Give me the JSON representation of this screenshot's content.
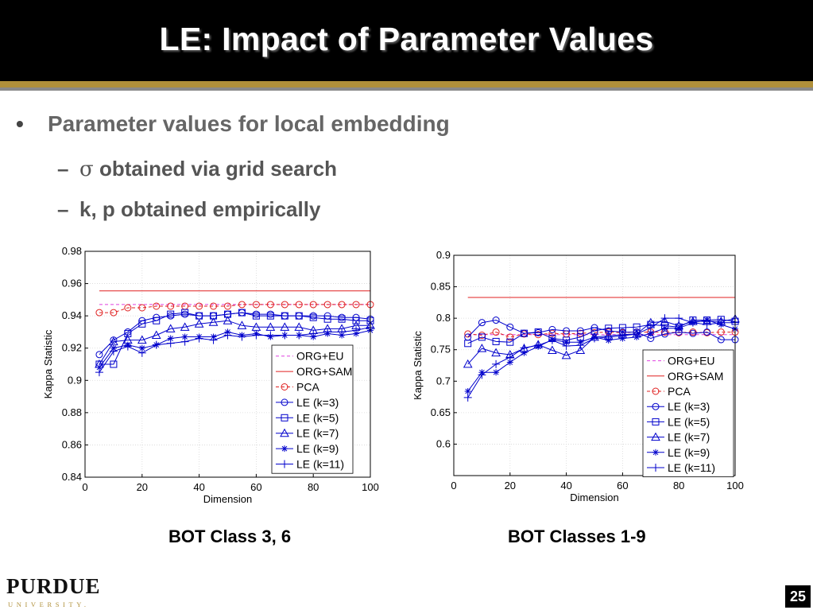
{
  "slide": {
    "title": "LE: Impact of Parameter Values",
    "bullet": "Parameter values for local embedding",
    "sub1_symbol": "σ",
    "sub1_text": " obtained via grid search",
    "sub2_text": "k, p obtained empirically",
    "dash": "–",
    "dot": "•",
    "caption_left": "BOT Class 3, 6",
    "caption_right": "BOT Classes 1-9",
    "logo_word": "PURDUE",
    "logo_sub": "UNIVERSITY.",
    "page_number": "25"
  },
  "colors": {
    "title_bg": "#000000",
    "gold": "#b0903a",
    "org_eu": "#e040e0",
    "org_sam": "#e02020",
    "pca": "#e02020",
    "le": "#0000cc"
  },
  "chart_data": [
    {
      "type": "line",
      "xlabel": "Dimension",
      "ylabel": "Kappa Statistic",
      "xlim": [
        0,
        100
      ],
      "ylim": [
        0.84,
        0.98
      ],
      "xticks": [
        0,
        20,
        40,
        60,
        80,
        100
      ],
      "yticks": [
        0.84,
        0.86,
        0.88,
        0.9,
        0.92,
        0.94,
        0.96,
        0.98
      ],
      "grid": true,
      "legend_position": "lower-right",
      "x": [
        5,
        10,
        15,
        20,
        25,
        30,
        35,
        40,
        45,
        50,
        55,
        60,
        65,
        70,
        75,
        80,
        85,
        90,
        95,
        100
      ],
      "series": [
        {
          "name": "ORG+EU",
          "style": "dashed",
          "marker": "none",
          "color": "#e040e0",
          "x": [
            5,
            100
          ],
          "values": [
            0.947,
            0.947
          ]
        },
        {
          "name": "ORG+SAM",
          "style": "solid",
          "marker": "none",
          "color": "#e02020",
          "x": [
            5,
            100
          ],
          "values": [
            0.9555,
            0.9555
          ]
        },
        {
          "name": "PCA",
          "style": "dashed",
          "marker": "circle",
          "color": "#e02020",
          "values": [
            0.942,
            0.942,
            0.945,
            0.945,
            0.946,
            0.946,
            0.946,
            0.946,
            0.946,
            0.946,
            0.947,
            0.947,
            0.947,
            0.947,
            0.947,
            0.947,
            0.947,
            0.947,
            0.947,
            0.947
          ]
        },
        {
          "name": "LE (k=3)",
          "style": "solid",
          "marker": "circle",
          "color": "#0000cc",
          "values": [
            0.916,
            0.925,
            0.93,
            0.937,
            0.939,
            0.94,
            0.941,
            0.94,
            0.94,
            0.941,
            0.942,
            0.941,
            0.941,
            0.94,
            0.94,
            0.94,
            0.94,
            0.939,
            0.939,
            0.938
          ]
        },
        {
          "name": "LE (k=5)",
          "style": "solid",
          "marker": "square",
          "color": "#0000cc",
          "values": [
            0.91,
            0.91,
            0.929,
            0.935,
            0.937,
            0.941,
            0.942,
            0.94,
            0.94,
            0.941,
            0.942,
            0.94,
            0.94,
            0.94,
            0.94,
            0.939,
            0.938,
            0.938,
            0.937,
            0.937
          ]
        },
        {
          "name": "LE (k=7)",
          "style": "solid",
          "marker": "triangle",
          "color": "#0000cc",
          "values": [
            0.91,
            0.924,
            0.925,
            0.925,
            0.928,
            0.932,
            0.933,
            0.935,
            0.936,
            0.937,
            0.934,
            0.933,
            0.933,
            0.933,
            0.933,
            0.931,
            0.932,
            0.932,
            0.934,
            0.934
          ]
        },
        {
          "name": "LE (k=9)",
          "style": "solid",
          "marker": "star",
          "color": "#0000cc",
          "values": [
            0.908,
            0.92,
            0.922,
            0.92,
            0.922,
            0.926,
            0.927,
            0.927,
            0.927,
            0.93,
            0.928,
            0.929,
            0.927,
            0.928,
            0.928,
            0.927,
            0.929,
            0.928,
            0.929,
            0.931
          ]
        },
        {
          "name": "LE (k=11)",
          "style": "solid",
          "marker": "plus",
          "color": "#0000cc",
          "values": [
            0.905,
            0.918,
            0.921,
            0.917,
            0.922,
            0.923,
            0.924,
            0.926,
            0.925,
            0.928,
            0.927,
            0.928,
            0.928,
            0.928,
            0.928,
            0.929,
            0.93,
            0.93,
            0.931,
            0.933
          ]
        }
      ]
    },
    {
      "type": "line",
      "xlabel": "Dimension",
      "ylabel": "Kappa Statistic",
      "xlim": [
        0,
        100
      ],
      "ylim": [
        0.55,
        0.9
      ],
      "xticks": [
        0,
        20,
        40,
        60,
        80,
        100
      ],
      "yticks": [
        0.6,
        0.65,
        0.7,
        0.75,
        0.8,
        0.85,
        0.9
      ],
      "grid": true,
      "legend_position": "lower-right",
      "x": [
        5,
        10,
        15,
        20,
        25,
        30,
        35,
        40,
        45,
        50,
        55,
        60,
        65,
        70,
        75,
        80,
        85,
        90,
        95,
        100
      ],
      "series": [
        {
          "name": "ORG+EU",
          "style": "dashed",
          "marker": "none",
          "color": "#e040e0",
          "x": [
            5,
            100
          ],
          "values": [
            0.774,
            0.774
          ]
        },
        {
          "name": "ORG+SAM",
          "style": "solid",
          "marker": "none",
          "color": "#e02020",
          "x": [
            5,
            100
          ],
          "values": [
            0.833,
            0.833
          ]
        },
        {
          "name": "PCA",
          "style": "dashed",
          "marker": "circle",
          "color": "#e02020",
          "values": [
            0.775,
            0.773,
            0.778,
            0.77,
            0.775,
            0.774,
            0.776,
            0.775,
            0.776,
            0.777,
            0.778,
            0.777,
            0.778,
            0.778,
            0.778,
            0.777,
            0.778,
            0.777,
            0.778,
            0.778
          ]
        },
        {
          "name": "LE (k=3)",
          "style": "solid",
          "marker": "circle",
          "color": "#0000cc",
          "values": [
            0.77,
            0.793,
            0.797,
            0.786,
            0.776,
            0.777,
            0.782,
            0.78,
            0.78,
            0.785,
            0.78,
            0.778,
            0.778,
            0.768,
            0.775,
            0.778,
            0.776,
            0.778,
            0.766,
            0.766
          ]
        },
        {
          "name": "LE (k=5)",
          "style": "solid",
          "marker": "square",
          "color": "#0000cc",
          "values": [
            0.76,
            0.77,
            0.763,
            0.762,
            0.776,
            0.778,
            0.768,
            0.765,
            0.77,
            0.78,
            0.784,
            0.785,
            0.786,
            0.79,
            0.788,
            0.786,
            0.797,
            0.797,
            0.798,
            0.795
          ]
        },
        {
          "name": "LE (k=7)",
          "style": "solid",
          "marker": "triangle",
          "color": "#0000cc",
          "values": [
            0.727,
            0.752,
            0.745,
            0.742,
            0.752,
            0.758,
            0.749,
            0.741,
            0.749,
            0.77,
            0.772,
            0.774,
            0.775,
            0.793,
            0.795,
            0.788,
            0.795,
            0.795,
            0.795,
            0.799
          ]
        },
        {
          "name": "LE (k=9)",
          "style": "solid",
          "marker": "star",
          "color": "#0000cc",
          "values": [
            0.684,
            0.714,
            0.714,
            0.73,
            0.745,
            0.755,
            0.766,
            0.762,
            0.762,
            0.77,
            0.765,
            0.768,
            0.77,
            0.776,
            0.784,
            0.784,
            0.793,
            0.797,
            0.79,
            0.783
          ]
        },
        {
          "name": "LE (k=11)",
          "style": "solid",
          "marker": "plus",
          "color": "#0000cc",
          "values": [
            0.674,
            0.71,
            0.727,
            0.738,
            0.753,
            0.757,
            0.765,
            0.756,
            0.757,
            0.768,
            0.77,
            0.772,
            0.775,
            0.785,
            0.8,
            0.8,
            0.793,
            0.79,
            0.793,
            0.793
          ]
        }
      ]
    }
  ]
}
